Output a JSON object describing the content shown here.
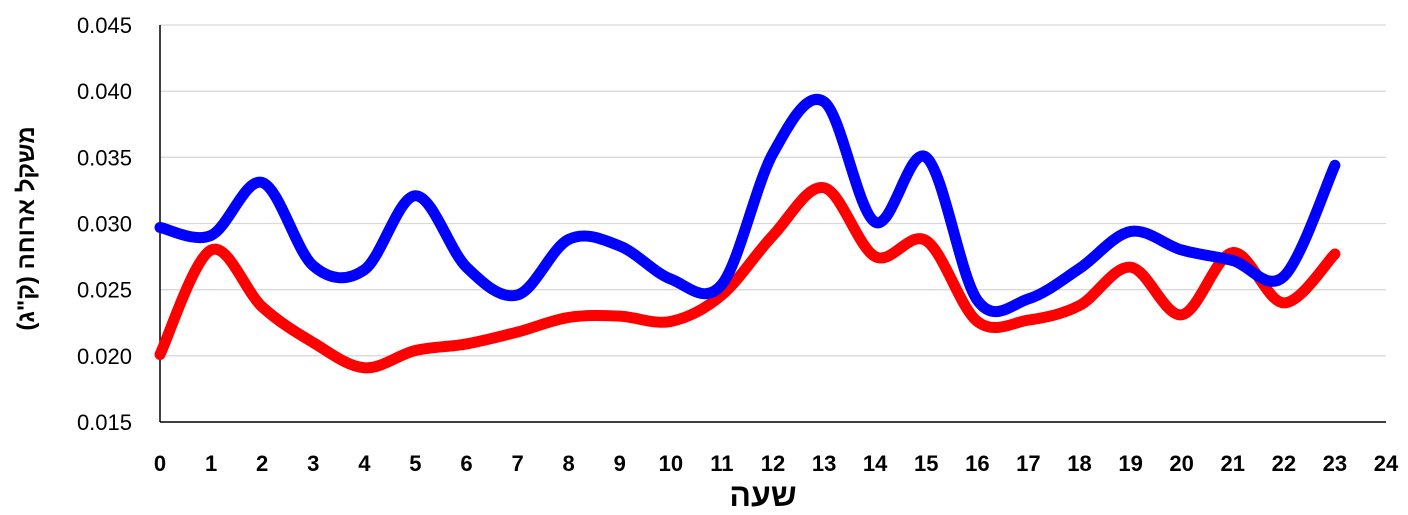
{
  "chart_data": {
    "type": "line",
    "title": "",
    "xlabel": "שעה",
    "ylabel": "משקל ארוחה (ק\"ג)",
    "xlim": [
      0,
      24
    ],
    "ylim": [
      0.015,
      0.045
    ],
    "x_ticks": [
      0,
      1,
      2,
      3,
      4,
      5,
      6,
      7,
      8,
      9,
      10,
      11,
      12,
      13,
      14,
      15,
      16,
      17,
      18,
      19,
      20,
      21,
      22,
      23,
      24
    ],
    "y_ticks": [
      "0.015",
      "0.020",
      "0.025",
      "0.030",
      "0.035",
      "0.040",
      "0.045"
    ],
    "grid": true,
    "legend": "none",
    "x": [
      0,
      1,
      2,
      3,
      4,
      5,
      6,
      7,
      8,
      9,
      10,
      11,
      12,
      13,
      14,
      15,
      16,
      17,
      18,
      19,
      20,
      21,
      22,
      23
    ],
    "series": [
      {
        "color": "#0000ff",
        "values": [
          0.0297,
          0.0291,
          0.0331,
          0.0268,
          0.0265,
          0.0321,
          0.0267,
          0.0246,
          0.0288,
          0.0283,
          0.0258,
          0.0254,
          0.0353,
          0.0392,
          0.0301,
          0.035,
          0.0242,
          0.0243,
          0.0266,
          0.0294,
          0.028,
          0.0272,
          0.026,
          0.0344
        ]
      },
      {
        "color": "#ff0000",
        "values": [
          0.0201,
          0.028,
          0.0237,
          0.021,
          0.0191,
          0.0204,
          0.0209,
          0.0218,
          0.0229,
          0.023,
          0.0226,
          0.0246,
          0.0291,
          0.0327,
          0.0275,
          0.0287,
          0.0226,
          0.0227,
          0.0238,
          0.0267,
          0.0231,
          0.0278,
          0.024,
          0.0277
        ]
      }
    ]
  }
}
